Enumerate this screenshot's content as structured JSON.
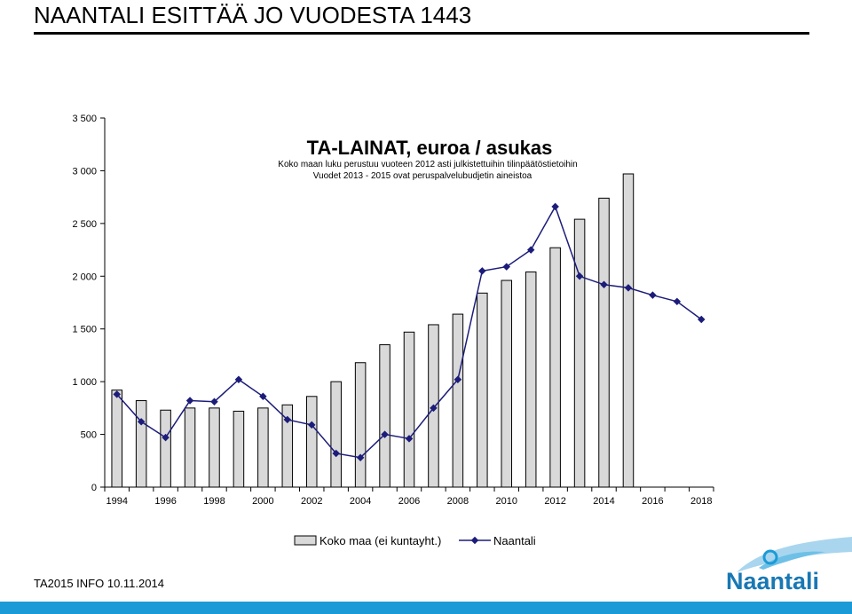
{
  "slide": {
    "title": "NAANTALI ESITTÄÄ JO VUODESTA 1443",
    "footer": "TA2015 INFO 10.11.2014",
    "logo_text": "Naantali"
  },
  "colors": {
    "bar_fill": "#d9d9d9",
    "line": "#1c1c7a",
    "accent_blue": "#1a9bd7",
    "logo_blue": "#1878b4"
  },
  "chart_data": {
    "type": "bar",
    "title": "TA-LAINAT,  euroa / asukas",
    "subtitle_lines": [
      "Koko maan luku perustuu vuoteen 2012 asti julkistettuihin tilinpäätöstietoihin",
      "Vuodet 2013 - 2015 ovat peruspalvelubudjetin aineistoa"
    ],
    "years": [
      1994,
      1995,
      1996,
      1997,
      1998,
      1999,
      2000,
      2001,
      2002,
      2003,
      2004,
      2005,
      2006,
      2007,
      2008,
      2009,
      2010,
      2011,
      2012,
      2013,
      2014,
      2015,
      2016,
      2017,
      2018
    ],
    "x_tick_labels": [
      "1994",
      "1996",
      "1998",
      "2000",
      "2002",
      "2004",
      "2006",
      "2008",
      "2010",
      "2012",
      "2014",
      "2016",
      "2018"
    ],
    "y_tick_labels": [
      "0",
      "500",
      "1 000",
      "1 500",
      "2 000",
      "2 500",
      "3 000",
      "3 500"
    ],
    "ylim": [
      0,
      3500
    ],
    "series": [
      {
        "name": "Koko maa (ei kuntayht.)",
        "kind": "bar",
        "values": [
          920,
          820,
          730,
          750,
          750,
          720,
          750,
          780,
          860,
          1000,
          1180,
          1350,
          1470,
          1540,
          1640,
          1840,
          1960,
          2040,
          2270,
          2540,
          2740,
          2970,
          null,
          null,
          null
        ]
      },
      {
        "name": "Naantali",
        "kind": "line",
        "values": [
          880,
          620,
          470,
          820,
          810,
          1020,
          860,
          640,
          590,
          320,
          280,
          500,
          460,
          750,
          1020,
          2050,
          2090,
          2250,
          2660,
          2000,
          1920,
          1890,
          1820,
          1760,
          1590
        ]
      }
    ],
    "legend_position": "bottom",
    "grid": false
  }
}
